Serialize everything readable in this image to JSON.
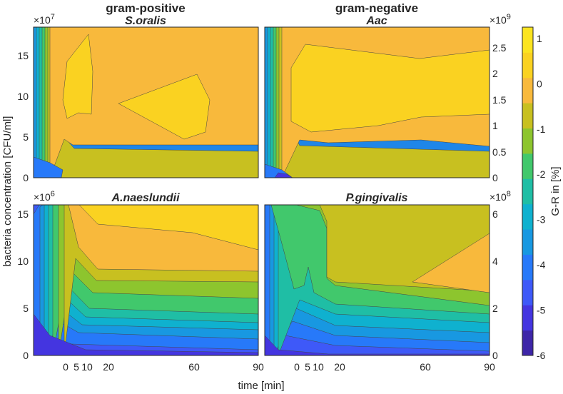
{
  "chart_data": {
    "type": "contour",
    "column_titles": [
      "gram-positive",
      "gram-negative"
    ],
    "xlabel": "time [min]",
    "ylabel": "bacteria concentration [CFU/ml]",
    "x_ticks": [
      0,
      5,
      10,
      20,
      60,
      90
    ],
    "x_tick_labels": [
      "0",
      "5",
      "10",
      "20",
      "60",
      "90"
    ],
    "xlim": [
      -15,
      90
    ],
    "colorbar": {
      "label": "G-R in [%]",
      "range": [
        -6,
        1.25
      ],
      "ticks": [
        1,
        0,
        -1,
        -2,
        -3,
        -4,
        -5,
        -6
      ],
      "tick_labels": [
        "1",
        "0",
        "-1",
        "-2",
        "-3",
        "-4",
        "-5",
        "-6"
      ],
      "colors": [
        "#3e26a8",
        "#4435e0",
        "#3e59f8",
        "#2779f9",
        "#1898e1",
        "#0fb1cf",
        "#1fbea5",
        "#41c86c",
        "#8dc52e",
        "#c8c020",
        "#f8b93c",
        "#fad221",
        "#fbe420"
      ]
    },
    "panels": [
      {
        "title": "S.oralis",
        "multiplier": "×10",
        "multiplier_exp": "7",
        "y_ticks": [
          "0",
          "5",
          "10",
          "15"
        ],
        "ylim": [
          0,
          18.5
        ],
        "summary": "G-R rises from about -5 % at low concentration to about 0 % above 5×10^7 CFU/ml; maxima ~1 % near 0-10 min at 10-15×10^7 and around 40-70 min at 8-12×10^7"
      },
      {
        "title": "Aac",
        "multiplier": "×10",
        "multiplier_exp": "9",
        "y_ticks": [
          "0",
          "0.5",
          "1",
          "1.5",
          "2",
          "2.5"
        ],
        "ylim": [
          0,
          2.85
        ],
        "summary": "G-R rises from about -5 % at low concentration to above 0 % over 0.2-2.7×10^9 CFU/ml; broad maximum ~1 % between 1 and 2.5×10^9"
      },
      {
        "title": "A.naeslundii",
        "multiplier": "×10",
        "multiplier_exp": "6",
        "y_ticks": [
          "0",
          "5",
          "10",
          "15"
        ],
        "ylim": [
          0,
          16
        ],
        "summary": "G-R rises from about -5 % to about 0 % above 8×10^6 CFU/ml and about 1 % above 12×10^6 CFU/ml"
      },
      {
        "title": "P.gingivalis",
        "multiplier": "×10",
        "multiplier_exp": "8",
        "y_ticks": [
          "0",
          "2",
          "4",
          "6"
        ],
        "ylim": [
          0,
          6.4
        ],
        "summary": "G-R rises from about -5 % to about -1 % at 3-6×10^8 CFU/ml for 0-20 min and about 0 % after 60 min"
      }
    ]
  }
}
